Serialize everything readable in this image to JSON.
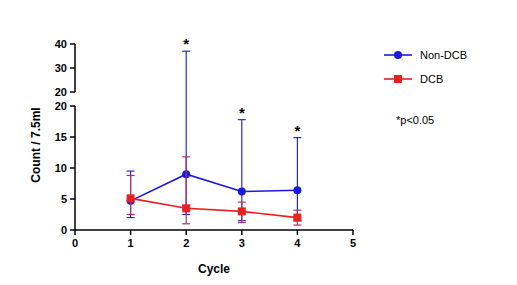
{
  "chart_data": {
    "type": "line",
    "x_label": "Cycle",
    "y_label": "Count / 7.5ml",
    "x": [
      1,
      2,
      3,
      4
    ],
    "series": [
      {
        "name": "Non-DCB",
        "color": "#1a1adb",
        "marker": "circle",
        "values": [
          4.7,
          9.0,
          6.2,
          6.4
        ],
        "error_low": [
          2.0,
          2.5,
          1.5,
          1.5
        ],
        "error_high": [
          9.5,
          37.0,
          17.8,
          14.9
        ]
      },
      {
        "name": "DCB",
        "color": "#e8201e",
        "marker": "square",
        "values": [
          5.1,
          3.5,
          3.0,
          2.0
        ],
        "error_low": [
          2.5,
          1.0,
          1.2,
          0.8
        ],
        "error_high": [
          8.8,
          11.8,
          4.5,
          3.2
        ]
      }
    ],
    "xlim": [
      0,
      5
    ],
    "xticks": [
      0,
      1,
      2,
      3,
      4,
      5
    ],
    "ylim": [
      0,
      40
    ],
    "yticks": [
      0,
      5,
      10,
      15,
      20,
      30,
      40
    ],
    "y_break": 20,
    "annotations": [
      {
        "x": 2,
        "text": "*"
      },
      {
        "x": 3,
        "text": "*"
      },
      {
        "x": 4,
        "text": "*"
      }
    ],
    "note": "*p<0.05",
    "legend": "right"
  }
}
